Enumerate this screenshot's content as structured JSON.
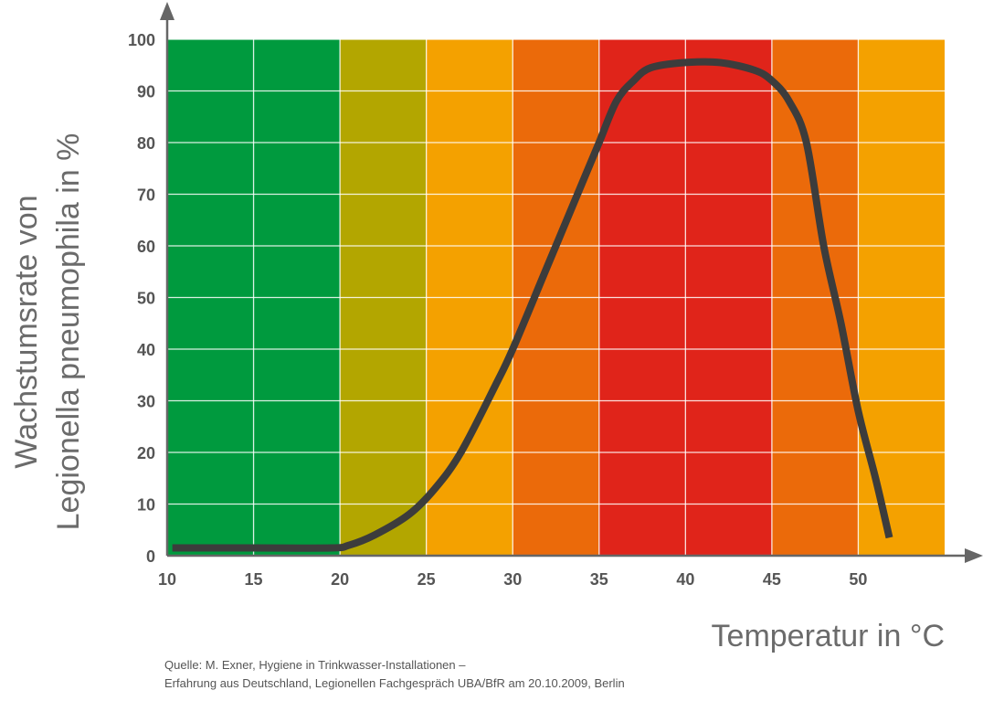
{
  "chart_data": {
    "type": "line",
    "xlabel": "Temperatur in °C",
    "ylabel_lines": [
      "Wachstumsrate von",
      "Legionella pneumophila in %"
    ],
    "xlim": [
      10,
      55
    ],
    "ylim": [
      0,
      100
    ],
    "x_ticks": [
      10,
      15,
      20,
      25,
      30,
      35,
      40,
      45,
      50
    ],
    "x_tick_labels": [
      "10",
      "15",
      "20",
      "25",
      "30",
      "35",
      "40",
      "45",
      "50"
    ],
    "y_ticks": [
      0,
      10,
      20,
      30,
      40,
      50,
      60,
      70,
      80,
      90,
      100
    ],
    "y_tick_labels": [
      "0",
      "10",
      "20",
      "30",
      "40",
      "50",
      "60",
      "70",
      "80",
      "90",
      "100"
    ],
    "grid": true,
    "background_bands": [
      {
        "from": 10,
        "to": 20,
        "color": "#009a3e"
      },
      {
        "from": 20,
        "to": 25,
        "color": "#b3a600"
      },
      {
        "from": 25,
        "to": 30,
        "color": "#f4a100"
      },
      {
        "from": 30,
        "to": 35,
        "color": "#eb6a0a"
      },
      {
        "from": 35,
        "to": 45,
        "color": "#e0241a"
      },
      {
        "from": 45,
        "to": 50,
        "color": "#eb6a0a"
      },
      {
        "from": 50,
        "to": 55,
        "color": "#f4a100"
      }
    ],
    "series": [
      {
        "color": "#3c3c3c",
        "x": [
          10.3,
          15,
          19.5,
          20.5,
          22,
          24,
          25.5,
          27,
          29,
          30,
          32,
          34,
          35,
          36,
          37,
          38,
          40,
          42,
          44,
          45,
          46,
          47,
          48,
          49,
          50,
          51,
          51.8
        ],
        "y": [
          1.5,
          1.5,
          1.5,
          2,
          4,
          8,
          13,
          20,
          33,
          40,
          56,
          72,
          80,
          88,
          92,
          94.5,
          95.5,
          95.5,
          94,
          92,
          88,
          80,
          60,
          45,
          28,
          15,
          3.5
        ]
      }
    ]
  },
  "source": {
    "line1": "Quelle: M. Exner, Hygiene in Trinkwasser-Installationen –",
    "line2": "Erfahrung aus Deutschland, Legionellen Fachgespräch UBA/BfR am 20.10.2009, Berlin"
  }
}
